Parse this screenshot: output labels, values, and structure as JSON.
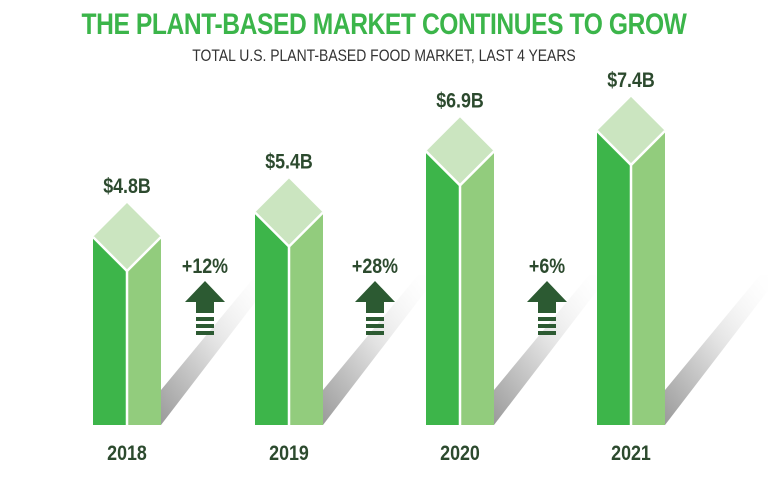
{
  "chart_data": {
    "type": "bar",
    "title": "THE PLANT-BASED MARKET CONTINUES TO GROW",
    "subtitle": "TOTAL U.S. PLANT-BASED FOOD MARKET, LAST 4 YEARS",
    "categories": [
      "2018",
      "2019",
      "2020",
      "2021"
    ],
    "values": [
      4.8,
      5.4,
      6.9,
      7.4
    ],
    "value_labels": [
      "$4.8B",
      "$5.4B",
      "$6.9B",
      "$7.4B"
    ],
    "growth_labels": [
      "+12%",
      "+28%",
      "+6%"
    ],
    "colors": {
      "title": "#3bb54a",
      "bar_left": "#3db54a",
      "bar_right": "#92cc7d",
      "bar_top": "#cbe5c0",
      "arrow": "#2c5a32",
      "label": "#2c4a2e"
    }
  }
}
